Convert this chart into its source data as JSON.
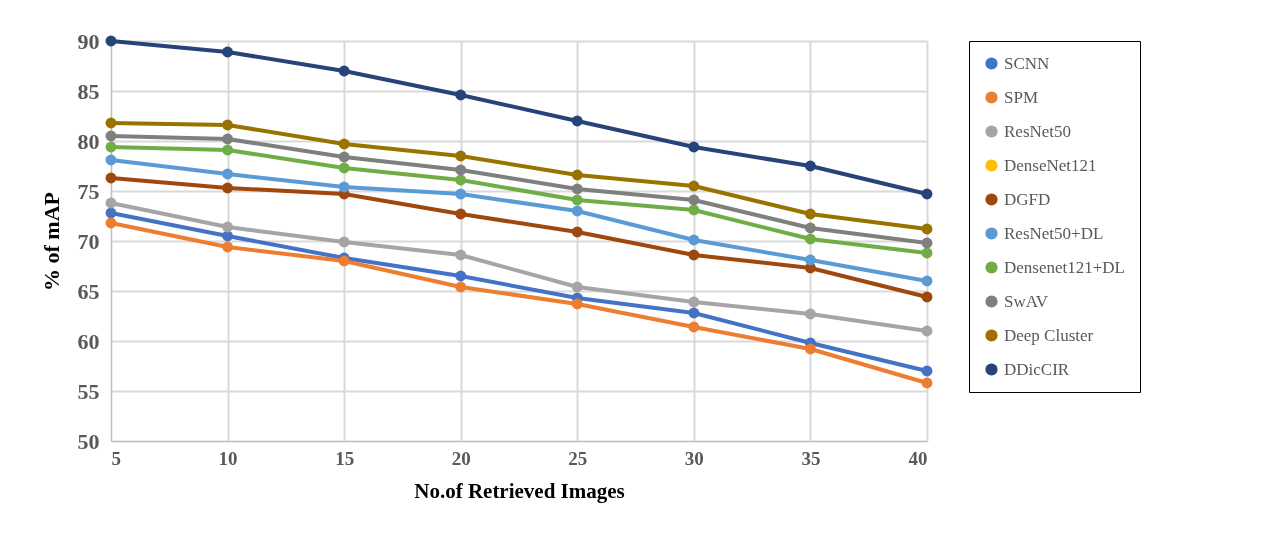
{
  "chart_data": {
    "type": "line",
    "xlabel": "No.of Retrieved Images",
    "ylabel": "% of mAP",
    "x": [
      5,
      10,
      15,
      20,
      25,
      30,
      35,
      40
    ],
    "xlim": [
      5,
      40
    ],
    "xticks": [
      5,
      10,
      15,
      20,
      25,
      30,
      35,
      40
    ],
    "ylim": [
      50,
      90
    ],
    "yticks": [
      50,
      55,
      60,
      65,
      70,
      75,
      80,
      85,
      90
    ],
    "grid": true,
    "legend": "right",
    "marker": "circle",
    "line_style": "solid",
    "series": [
      {
        "name": "SCNN",
        "color": "#4472c4",
        "values": [
          72.8,
          70.5,
          68.3,
          66.5,
          64.3,
          62.8,
          59.8,
          57.0
        ]
      },
      {
        "name": "SPM",
        "color": "#ed7d31",
        "values": [
          71.8,
          69.4,
          68.0,
          65.4,
          63.7,
          61.4,
          59.2,
          55.8
        ]
      },
      {
        "name": "ResNet50",
        "color": "#a5a5a5",
        "values": [
          73.8,
          71.4,
          69.9,
          68.6,
          65.4,
          63.9,
          62.7,
          61.0
        ]
      },
      {
        "name": "DenseNet121",
        "color": "#ffc000",
        "values": [
          null,
          null,
          null,
          null,
          null,
          null,
          null,
          null
        ]
      },
      {
        "name": "DGFD",
        "color": "#9e480e",
        "values": [
          76.3,
          75.3,
          74.7,
          72.7,
          70.9,
          68.6,
          67.3,
          64.4
        ]
      },
      {
        "name": "ResNet50+DL",
        "color": "#5b9bd5",
        "values": [
          78.1,
          76.7,
          75.4,
          74.7,
          73.0,
          70.1,
          68.1,
          66.0
        ]
      },
      {
        "name": "Densenet121+DL",
        "color": "#70ad47",
        "values": [
          79.4,
          79.1,
          77.3,
          76.1,
          74.1,
          73.1,
          70.2,
          68.8
        ]
      },
      {
        "name": "SwAV",
        "color": "#7f7f7f",
        "values": [
          80.5,
          80.2,
          78.4,
          77.1,
          75.2,
          74.1,
          71.3,
          69.8
        ]
      },
      {
        "name": "Deep Cluster",
        "color": "#997300",
        "values": [
          81.8,
          81.6,
          79.7,
          78.5,
          76.6,
          75.5,
          72.7,
          71.2
        ]
      },
      {
        "name": "DDicCIR",
        "color": "#264478",
        "values": [
          90.0,
          88.9,
          87.0,
          84.6,
          82.0,
          79.4,
          77.5,
          74.7
        ]
      }
    ]
  }
}
